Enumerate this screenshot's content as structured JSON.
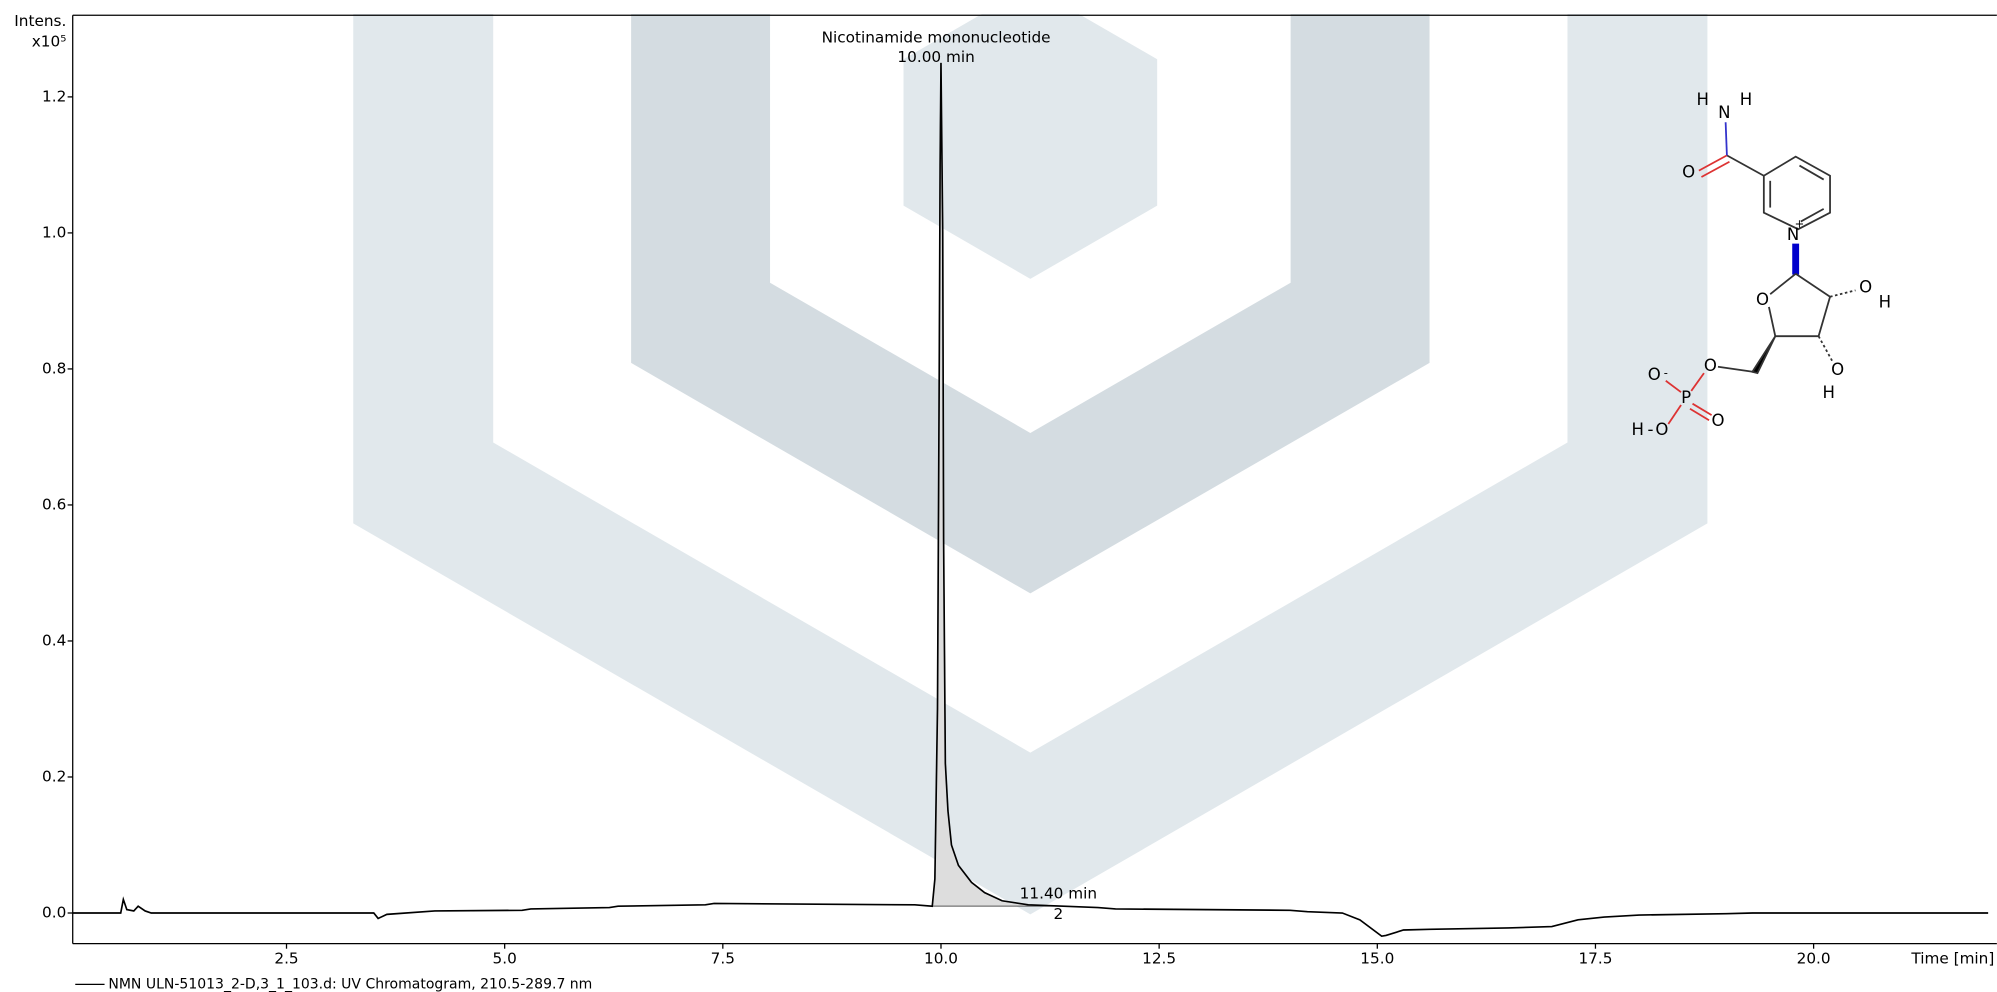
{
  "chart_data": {
    "type": "line",
    "y_label": "Intens.",
    "y_multiplier": "x10⁵",
    "x_label": "Time [min]",
    "xlim": [
      0.05,
      22.1
    ],
    "ylim": [
      -0.045,
      1.32
    ],
    "xticks": [
      2.5,
      {
        "value": 5,
        "label": "5.0"
      },
      7.5,
      {
        "value": 10,
        "label": "10.0"
      },
      12.5,
      {
        "value": 15,
        "label": "15.0"
      },
      17.5,
      {
        "value": 20,
        "label": "20.0"
      }
    ],
    "yticks": [
      {
        "value": 0,
        "label": "0.0"
      },
      0.2,
      0.4,
      0.6,
      0.8,
      {
        "value": 1,
        "label": "1.0"
      },
      1.2
    ],
    "x": [
      0.05,
      0.6,
      0.63,
      0.67,
      0.75,
      0.8,
      0.88,
      0.95,
      3.5,
      3.55,
      3.65,
      4.2,
      5.2,
      5.3,
      6.2,
      6.3,
      7.3,
      7.4,
      9.7,
      9.9,
      9.93,
      9.96,
      9.98,
      9.99,
      10.0,
      10.02,
      10.03,
      10.05,
      10.08,
      10.12,
      10.2,
      10.35,
      10.5,
      10.7,
      11.0,
      11.4,
      11.8,
      12.0,
      14.0,
      14.2,
      14.6,
      14.8,
      15.05,
      15.1,
      15.3,
      15.6,
      16.5,
      17.0,
      17.3,
      17.6,
      18.0,
      19.0,
      19.3,
      22.0
    ],
    "series": [
      {
        "name": "NMN ULN-51013_2-D,3_1_103.d: UV Chromatogram, 210.5-289.7 nm",
        "color": "#000000",
        "values": [
          0.0,
          0.0,
          0.02,
          0.005,
          0.003,
          0.01,
          0.003,
          0.0,
          0.0,
          -0.008,
          -0.002,
          0.003,
          0.004,
          0.006,
          0.008,
          0.01,
          0.012,
          0.014,
          0.012,
          0.01,
          0.05,
          0.3,
          0.8,
          1.1,
          1.25,
          1.0,
          0.55,
          0.22,
          0.15,
          0.1,
          0.07,
          0.045,
          0.03,
          0.018,
          0.012,
          0.01,
          0.008,
          0.006,
          0.004,
          0.002,
          0.0,
          -0.01,
          -0.034,
          -0.033,
          -0.025,
          -0.024,
          -0.022,
          -0.02,
          -0.01,
          -0.006,
          -0.003,
          -0.001,
          0.0,
          0.0
        ]
      }
    ],
    "annotations": [
      {
        "label": "Nicotinamide mononucleotide",
        "time": "10.00 min"
      },
      {
        "time": "11.40 min",
        "label": "2"
      }
    ],
    "structure_atoms": [
      "H",
      "H",
      "N",
      "O",
      "N",
      "+",
      "O",
      "O",
      "H",
      "O",
      "H",
      "O",
      "O",
      "-",
      "P",
      "O",
      "H",
      "-",
      "O"
    ]
  }
}
